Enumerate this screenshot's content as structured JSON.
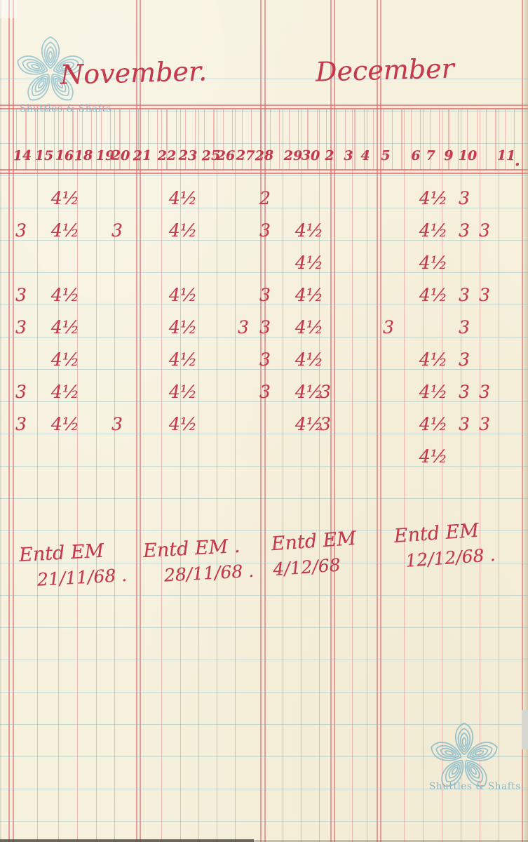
{
  "watermark": {
    "brand": "Shuttles & Shafts"
  },
  "header": {
    "months": [
      "November.",
      "December"
    ]
  },
  "date_row": [
    "14",
    "15",
    "16",
    "18",
    "19",
    "20",
    "21",
    "22",
    "23",
    "25",
    "26",
    "27",
    "28",
    "29",
    "30",
    "2",
    "3",
    "4",
    "5",
    "6",
    "7",
    "9",
    "10",
    "11"
  ],
  "date_row_end_mark": ".",
  "table": {
    "rows": [
      {
        "cells": {
          "16": "4½",
          "23": "4½",
          "28": "2",
          "7": "4½",
          "9": "3"
        }
      },
      {
        "cells": {
          "14": "3",
          "16": "4½",
          "20": "3",
          "23": "4½",
          "28": "3",
          "30": "4½",
          "7": "4½",
          "9": "3",
          "10": "3"
        }
      },
      {
        "cells": {
          "30": "4½",
          "7": "4½"
        }
      },
      {
        "cells": {
          "14": "3",
          "16": "4½",
          "23": "4½",
          "28": "3",
          "30": "4½",
          "7": "4½",
          "9": "3",
          "10": "3"
        }
      },
      {
        "cells": {
          "14": "3",
          "16": "4½",
          "23": "4½",
          "27": "3",
          "28": "3",
          "30": "4½",
          "5": "3",
          "9": "3"
        }
      },
      {
        "cells": {
          "16": "4½",
          "23": "4½",
          "28": "3",
          "30": "4½",
          "7": "4½",
          "9": "3"
        }
      },
      {
        "cells": {
          "14": "3",
          "16": "4½",
          "23": "4½",
          "28": "3",
          "30": "4½",
          "2": "3",
          "7": "4½",
          "9": "3",
          "10": "3"
        }
      },
      {
        "cells": {
          "14": "3",
          "16": "4½",
          "20": "3",
          "23": "4½",
          "30": "4½",
          "2": "3",
          "7": "4½",
          "9": "3",
          "10": "3"
        }
      },
      {
        "cells": {
          "7": "4½"
        }
      }
    ]
  },
  "notes": [
    {
      "line1": "Entd EM",
      "line2": "21/11/68 ."
    },
    {
      "line1": "Entd EM .",
      "line2": "28/11/68 ."
    },
    {
      "line1": "Entd EM",
      "line2": "4/12/68"
    },
    {
      "line1": "Entd EM",
      "line2": "12/12/68 ."
    }
  ],
  "colors": {
    "ink": "#c4394b",
    "rule_red": "#e87e84",
    "rule_blue": "#9cc4d2",
    "watermark_teal": "#7fb7c9",
    "paper": "#f6f1dd"
  }
}
